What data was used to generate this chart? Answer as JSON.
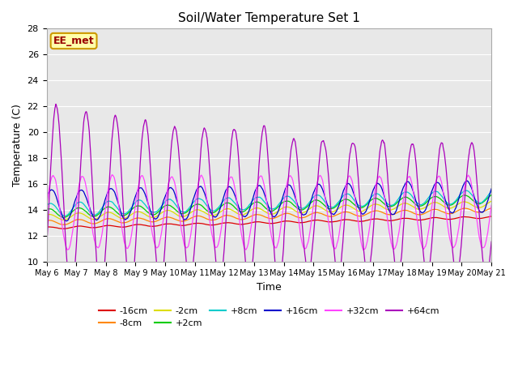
{
  "title": "Soil/Water Temperature Set 1",
  "xlabel": "Time",
  "ylabel": "Temperature (C)",
  "ylim": [
    10,
    28
  ],
  "background_color": "#ffffff",
  "plot_bg_color": "#e8e8e8",
  "series_order": [
    "-16cm",
    "-8cm",
    "-2cm",
    "+2cm",
    "+8cm",
    "+16cm",
    "+32cm",
    "+64cm"
  ],
  "colors": {
    "-16cm": "#dd0000",
    "-8cm": "#ff8800",
    "-2cm": "#dddd00",
    "+2cm": "#00cc00",
    "+8cm": "#00cccc",
    "+16cm": "#0000cc",
    "+32cm": "#ff44ff",
    "+64cm": "#aa00bb"
  },
  "annotation_text": "EE_met",
  "annotation_bg": "#ffffaa",
  "annotation_border": "#cc9900",
  "annotation_text_color": "#990000",
  "yticks": [
    10,
    12,
    14,
    16,
    18,
    20,
    22,
    24,
    26,
    28
  ],
  "x_tick_labels": [
    "May 6",
    "May 7",
    "May 8",
    "May 9",
    "May 10",
    "May 11",
    "May 12",
    "May 13",
    "May 14",
    "May 15",
    "May 16",
    "May 17",
    "May 18",
    "May 19",
    "May 20",
    "May 21"
  ],
  "n_points": 960,
  "n_days": 15
}
